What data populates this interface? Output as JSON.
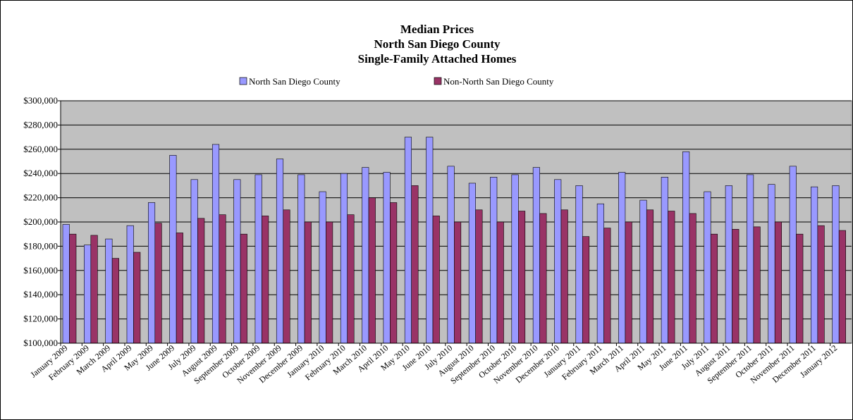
{
  "chart_data": {
    "type": "bar",
    "title_lines": [
      "Median Prices",
      "North San Diego County",
      "Single-Family Attached Homes"
    ],
    "categories": [
      "January 2009",
      "February 2009",
      "March 2009",
      "April 2009",
      "May 2009",
      "June 2009",
      "July 2009",
      "August 2009",
      "September 2009",
      "October 2009",
      "November 2009",
      "December 2009",
      "January 2010",
      "February 2010",
      "March 2010",
      "April 2010",
      "May 2010",
      "June 2010",
      "July 2010",
      "August 2010",
      "September 2010",
      "October 2010",
      "November 2010",
      "December 2010",
      "January 2011",
      "February 2011",
      "March 2011",
      "April 2011",
      "May 2011",
      "June 2011",
      "July 2011",
      "August 2011",
      "September 2011",
      "October 2011",
      "November 2011",
      "December 2011",
      "January 2012"
    ],
    "series": [
      {
        "name": "North San Diego County",
        "color": "#9999ff",
        "values": [
          198000,
          181000,
          186000,
          197000,
          216000,
          255000,
          235000,
          264000,
          235000,
          239000,
          252000,
          239000,
          225000,
          240000,
          245000,
          241000,
          270000,
          270000,
          246000,
          232000,
          237000,
          239000,
          245000,
          235000,
          230000,
          215000,
          241000,
          218000,
          237000,
          258000,
          225000,
          230000,
          239000,
          231000,
          246000,
          229000,
          230000
        ]
      },
      {
        "name": "Non-North San Diego County",
        "color": "#993366",
        "values": [
          190000,
          189000,
          170000,
          175000,
          199000,
          191000,
          203000,
          206000,
          190000,
          205000,
          210000,
          200000,
          200000,
          206000,
          220000,
          216000,
          230000,
          205000,
          200000,
          210000,
          200000,
          209000,
          207000,
          210000,
          188000,
          195000,
          200000,
          210000,
          209000,
          207000,
          190000,
          194000,
          196000,
          200000,
          190000,
          197000,
          193000
        ]
      }
    ],
    "ylim": [
      100000,
      300000
    ],
    "yticks": [
      {
        "value": 100000,
        "label": "$100,000"
      },
      {
        "value": 120000,
        "label": "$120,000"
      },
      {
        "value": 140000,
        "label": "$140,000"
      },
      {
        "value": 160000,
        "label": "$160,000"
      },
      {
        "value": 180000,
        "label": "$180,000"
      },
      {
        "value": 200000,
        "label": "$200,000"
      },
      {
        "value": 220000,
        "label": "$220,000"
      },
      {
        "value": 240000,
        "label": "$240,000"
      },
      {
        "value": 260000,
        "label": "$260,000"
      },
      {
        "value": 280000,
        "label": "$280,000"
      },
      {
        "value": 300000,
        "label": "$300,000"
      }
    ],
    "grid": true,
    "plot_background": "#c0c0c0",
    "legend": "top"
  }
}
